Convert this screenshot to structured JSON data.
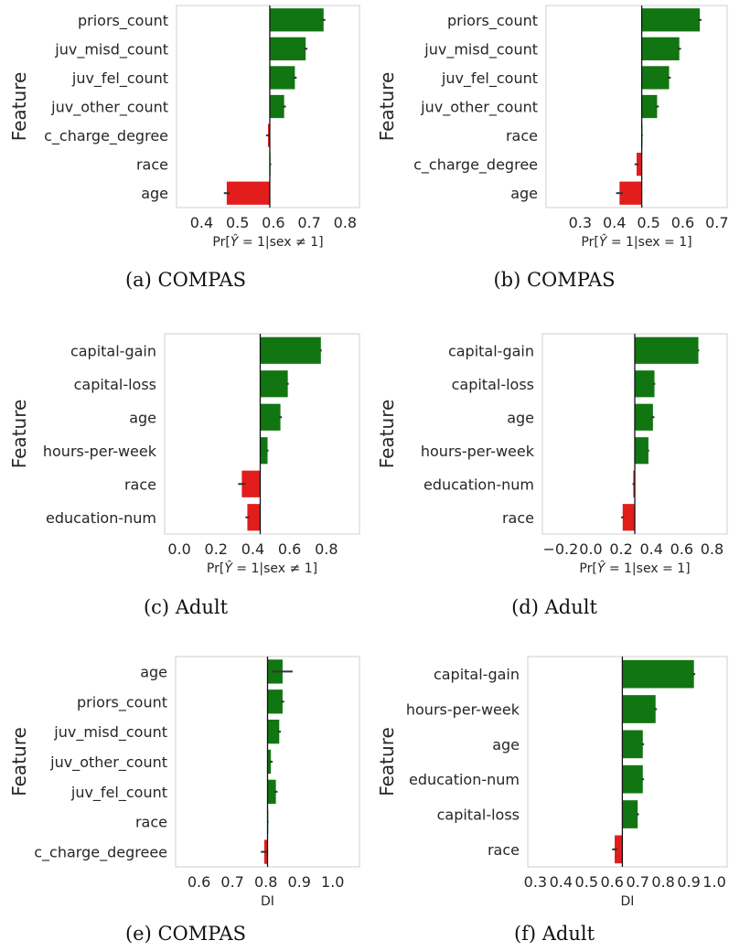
{
  "colors": {
    "positive": "#117611",
    "negative": "#e31c1c",
    "error": "#333333",
    "baseline": "#111111",
    "frame": "#cfcfcf"
  },
  "chart_data": [
    {
      "type": "bar",
      "orientation": "horizontal",
      "caption": "(a) COMPAS",
      "ylabel": "Feature",
      "xlabel": "Pr[Ŷ=1|sex ≠ 1]",
      "xlabel_parts": [
        "Pr[",
        "Ŷ",
        " = 1|sex ",
        "≠",
        " 1]"
      ],
      "xlim": [
        0.33,
        0.84
      ],
      "baseline": 0.59,
      "xticks": [
        "0.4",
        "0.5",
        "0.6",
        "0.7",
        "0.8"
      ],
      "xtick_values": [
        0.4,
        0.5,
        0.6,
        0.7,
        0.8
      ],
      "categories": [
        "priors_count",
        "juv_misd_count",
        "juv_fel_count",
        "juv_other_count",
        "c_charge_degree",
        "race",
        "age"
      ],
      "values": [
        0.74,
        0.69,
        0.66,
        0.63,
        0.585,
        0.592,
        0.47
      ],
      "errors": [
        0.005,
        0.005,
        0.005,
        0.005,
        0.005,
        0.002,
        0.008
      ]
    },
    {
      "type": "bar",
      "orientation": "horizontal",
      "caption": "(b) COMPAS",
      "ylabel": "Feature",
      "xlabel": "Pr[Ŷ=1|sex = 1]",
      "xlabel_parts": [
        "Pr[",
        "Ŷ",
        " = 1|sex = 1]"
      ],
      "xlim": [
        0.2,
        0.73
      ],
      "baseline": 0.48,
      "xticks": [
        "0.3",
        "0.4",
        "0.5",
        "0.6",
        "0.7"
      ],
      "xtick_values": [
        0.3,
        0.4,
        0.5,
        0.6,
        0.7
      ],
      "categories": [
        "priors_count",
        "juv_misd_count",
        "juv_fel_count",
        "juv_other_count",
        "race",
        "c_charge_degree",
        "age"
      ],
      "values": [
        0.65,
        0.59,
        0.56,
        0.525,
        0.481,
        0.465,
        0.415
      ],
      "errors": [
        0.005,
        0.005,
        0.005,
        0.005,
        0.002,
        0.006,
        0.01
      ]
    },
    {
      "type": "bar",
      "orientation": "horizontal",
      "caption": "(c) Adult",
      "ylabel": "Feature",
      "xlabel": "Pr[Ŷ=1|sex ≠ 1]",
      "xlabel_parts": [
        "Pr[",
        "Ŷ",
        " = 1|sex ",
        "≠",
        " 1]"
      ],
      "xlim": [
        -0.08,
        0.98
      ],
      "baseline": 0.44,
      "xticks": [
        "0.0",
        "0.2",
        "0.4",
        "0.6",
        "0.8"
      ],
      "xtick_values": [
        0.0,
        0.2,
        0.4,
        0.6,
        0.8
      ],
      "categories": [
        "capital-gain",
        "capital-loss",
        "age",
        "hours-per-week",
        "race",
        "education-num"
      ],
      "values": [
        0.77,
        0.59,
        0.55,
        0.48,
        0.34,
        0.37
      ],
      "errors": [
        0.005,
        0.005,
        0.008,
        0.005,
        0.02,
        0.01
      ]
    },
    {
      "type": "bar",
      "orientation": "horizontal",
      "caption": "(d) Adult",
      "ylabel": "Feature",
      "xlabel": "Pr[Ŷ=1|sex = 1]",
      "xlabel_parts": [
        "Pr[",
        "Ŷ",
        " = 1|sex = 1]"
      ],
      "xlim": [
        -0.32,
        0.9
      ],
      "baseline": 0.29,
      "xticks": [
        "−0.2",
        "0.0",
        "0.2",
        "0.4",
        "0.6",
        "0.8"
      ],
      "xtick_values": [
        -0.2,
        0.0,
        0.2,
        0.4,
        0.6,
        0.8
      ],
      "categories": [
        "capital-gain",
        "capital-loss",
        "age",
        "hours-per-week",
        "education-num",
        "race"
      ],
      "values": [
        0.71,
        0.42,
        0.41,
        0.38,
        0.28,
        0.21
      ],
      "errors": [
        0.005,
        0.005,
        0.01,
        0.005,
        0.005,
        0.01
      ]
    },
    {
      "type": "bar",
      "orientation": "horizontal",
      "caption": "(e) COMPAS",
      "ylabel": "Feature",
      "xlabel": "DI",
      "xlim": [
        0.53,
        1.08
      ],
      "baseline": 0.805,
      "xticks": [
        "0.6",
        "0.7",
        "0.8",
        "0.9",
        "1.0"
      ],
      "xtick_values": [
        0.6,
        0.7,
        0.8,
        0.9,
        1.0
      ],
      "categories": [
        "age",
        "priors_count",
        "juv_misd_count",
        "juv_other_count",
        "juv_fel_count",
        "race",
        "c_charge_degreee"
      ],
      "values": [
        0.85,
        0.85,
        0.84,
        0.815,
        0.83,
        0.806,
        0.795
      ],
      "errors": [
        0.03,
        0.005,
        0.005,
        0.005,
        0.005,
        0.002,
        0.01
      ]
    },
    {
      "type": "bar",
      "orientation": "horizontal",
      "caption": "(f) Adult",
      "ylabel": "Feature",
      "xlabel": "DI",
      "xlim": [
        0.27,
        1.05
      ],
      "baseline": 0.64,
      "xticks": [
        "0.3",
        "0.4",
        "0.5",
        "0.6",
        "0.7",
        "0.8",
        "0.9",
        "1.0"
      ],
      "xtick_values": [
        0.3,
        0.4,
        0.5,
        0.6,
        0.7,
        0.8,
        0.9,
        1.0
      ],
      "categories": [
        "capital-gain",
        "hours-per-week",
        "age",
        "education-num",
        "capital-loss",
        "race"
      ],
      "values": [
        0.92,
        0.77,
        0.72,
        0.72,
        0.7,
        0.61
      ],
      "errors": [
        0.005,
        0.005,
        0.005,
        0.005,
        0.005,
        0.01
      ]
    }
  ]
}
